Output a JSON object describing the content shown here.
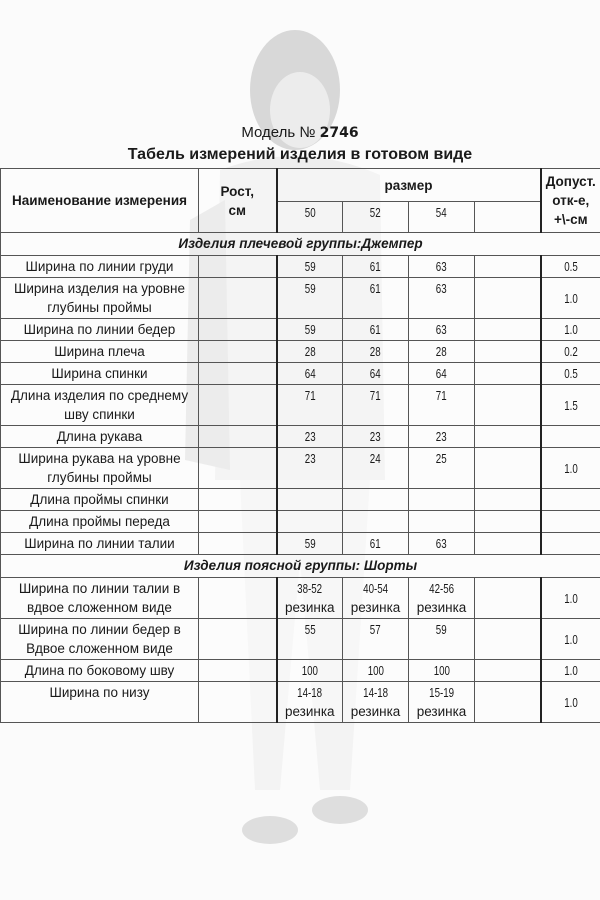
{
  "model_label": "Модель №",
  "model_number": "2746",
  "title": "Табель измерений изделия в готовом виде",
  "headers": {
    "name": "Наименование измерения",
    "height": "Рост, см",
    "size": "размер",
    "sizes": [
      "50",
      "52",
      "54",
      ""
    ],
    "tolerance": "Допуст. отк-е, +\\-см"
  },
  "sections": [
    {
      "title": "Изделия плечевой группы:Джемпер",
      "rows": [
        {
          "name": "Ширина по линии груди",
          "values": [
            "59",
            "61",
            "63",
            ""
          ],
          "tol": "0.5"
        },
        {
          "name": "Ширина изделия на уровне глубины проймы",
          "values": [
            "59",
            "61",
            "63",
            ""
          ],
          "tol": "1.0"
        },
        {
          "name": "Ширина по линии бедер",
          "values": [
            "59",
            "61",
            "63",
            ""
          ],
          "tol": "1.0"
        },
        {
          "name": "Ширина плеча",
          "values": [
            "28",
            "28",
            "28",
            ""
          ],
          "tol": "0.2"
        },
        {
          "name": "Ширина спинки",
          "values": [
            "64",
            "64",
            "64",
            ""
          ],
          "tol": "0.5"
        },
        {
          "name": "Длина изделия по среднему шву спинки",
          "values": [
            "71",
            "71",
            "71",
            ""
          ],
          "tol": "1.5"
        },
        {
          "name": "Длина рукава",
          "values": [
            "23",
            "23",
            "23",
            ""
          ],
          "tol": ""
        },
        {
          "name": "Ширина рукава на уровне глубины проймы",
          "values": [
            "23",
            "24",
            "25",
            ""
          ],
          "tol": "1.0"
        },
        {
          "name": "Длина проймы спинки",
          "values": [
            "",
            "",
            "",
            ""
          ],
          "tol": ""
        },
        {
          "name": "Длина проймы переда",
          "values": [
            "",
            "",
            "",
            ""
          ],
          "tol": ""
        },
        {
          "name": "Ширина по линии талии",
          "values": [
            "59",
            "61",
            "63",
            ""
          ],
          "tol": ""
        }
      ]
    },
    {
      "title": "Изделия поясной группы: Шорты",
      "rows": [
        {
          "name": "Ширина по линии талии в вдвое сложенном виде",
          "values": [
            "38-52 резинка",
            "40-54 резинка",
            "42-56 резинка",
            ""
          ],
          "tol": "1.0"
        },
        {
          "name": "Ширина по линии бедер в Вдвое сложенном виде",
          "values": [
            "55",
            "57",
            "59",
            ""
          ],
          "tol": "1.0"
        },
        {
          "name": "Длина по боковому шву",
          "values": [
            "100",
            "100",
            "100",
            ""
          ],
          "tol": "1.0"
        },
        {
          "name": "Ширина по низу",
          "values": [
            "14-18 резинка",
            "14-18 резинка",
            "15-19 резинка",
            ""
          ],
          "tol": "1.0"
        }
      ]
    }
  ]
}
